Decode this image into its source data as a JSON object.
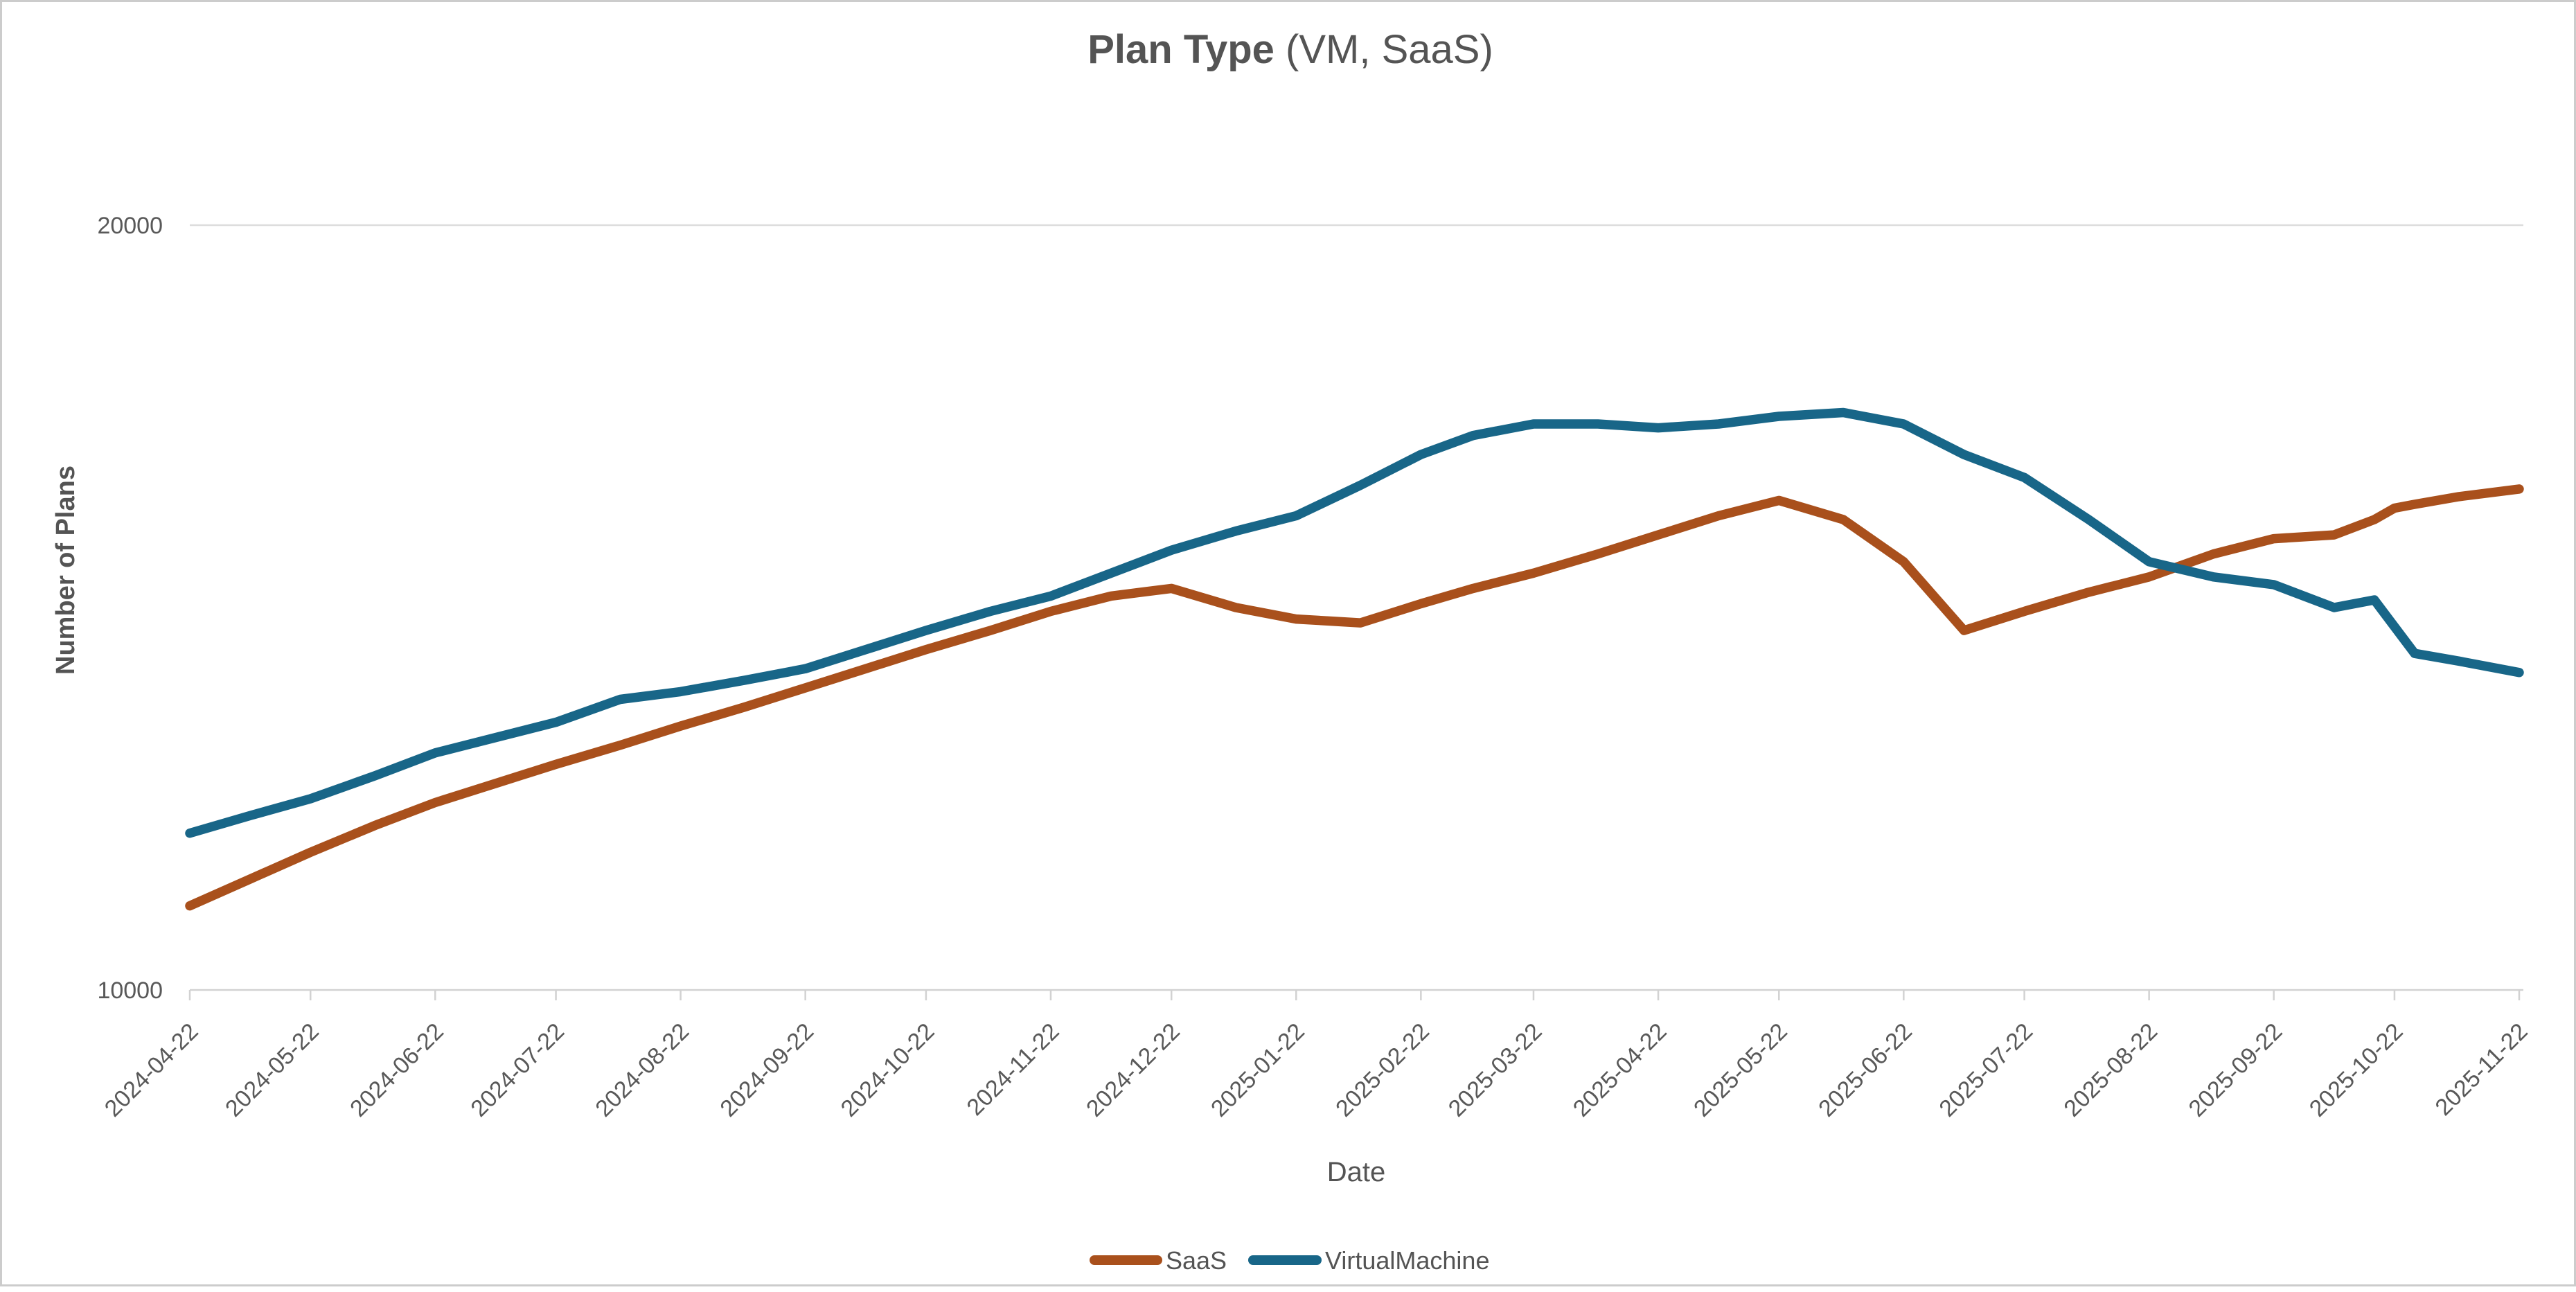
{
  "title": {
    "main": "Plan Type",
    "suffix": " (VM, SaaS)"
  },
  "axes": {
    "y_label": "Number of Plans",
    "x_label": "Date",
    "y_ticks": [
      "20000",
      "10000"
    ]
  },
  "legend": {
    "items": [
      {
        "label": "SaaS",
        "color": "#A9501C"
      },
      {
        "label": "VirtualMachine",
        "color": "#186688"
      }
    ]
  },
  "colors": {
    "saas": "#A9501C",
    "virtual_machine": "#186688",
    "gridline": "#DDDDDD",
    "axis": "#D2D2D2",
    "text": "#545454"
  },
  "chart_data": {
    "type": "line",
    "title": "Plan Type (VM, SaaS)",
    "xlabel": "Date",
    "ylabel": "Number of Plans",
    "ylim": [
      10000,
      21100
    ],
    "y_axis_ticks": [
      10000,
      20000
    ],
    "grid": "horizontal gridline at 20000 only",
    "legend_position": "bottom-center",
    "x": [
      "2024-04-22",
      "2024-05-07",
      "2024-05-22",
      "2024-06-07",
      "2024-06-22",
      "2024-07-07",
      "2024-07-22",
      "2024-08-07",
      "2024-08-22",
      "2024-09-07",
      "2024-09-22",
      "2024-10-07",
      "2024-10-22",
      "2024-11-07",
      "2024-11-22",
      "2024-12-07",
      "2024-12-22",
      "2025-01-07",
      "2025-01-22",
      "2025-02-07",
      "2025-02-22",
      "2025-03-07",
      "2025-03-22",
      "2025-04-07",
      "2025-04-22",
      "2025-05-07",
      "2025-05-22",
      "2025-06-07",
      "2025-06-22",
      "2025-07-07",
      "2025-07-22",
      "2025-08-07",
      "2025-08-22",
      "2025-09-07",
      "2025-09-22",
      "2025-10-07",
      "2025-10-17",
      "2025-10-22",
      "2025-10-27",
      "2025-11-07",
      "2025-11-22"
    ],
    "x_tick_labels": [
      "2024-04-22",
      "2024-05-22",
      "2024-06-22",
      "2024-07-22",
      "2024-08-22",
      "2024-09-22",
      "2024-10-22",
      "2024-11-22",
      "2024-12-22",
      "2025-01-22",
      "2025-02-22",
      "2025-03-22",
      "2025-04-22",
      "2025-05-22",
      "2025-06-22",
      "2025-07-22",
      "2025-08-22",
      "2025-09-22",
      "2025-10-22",
      "2025-11-22"
    ],
    "series": [
      {
        "name": "SaaS",
        "color": "#A9501C",
        "values": [
          11100,
          11450,
          11800,
          12150,
          12450,
          12700,
          12950,
          13200,
          13450,
          13700,
          13950,
          14200,
          14450,
          14700,
          14950,
          15150,
          15250,
          15000,
          14850,
          14800,
          15050,
          15250,
          15450,
          15700,
          15950,
          16200,
          16400,
          16150,
          15600,
          14700,
          14950,
          15200,
          15400,
          15700,
          15900,
          15950,
          16150,
          16300,
          16350,
          16450,
          16550
        ]
      },
      {
        "name": "VirtualMachine",
        "color": "#186688",
        "values": [
          12050,
          12280,
          12500,
          12800,
          13100,
          13300,
          13500,
          13800,
          13900,
          14050,
          14200,
          14450,
          14700,
          14950,
          15150,
          15450,
          15750,
          16000,
          16200,
          16600,
          17000,
          17250,
          17400,
          17400,
          17350,
          17400,
          17500,
          17550,
          17400,
          17000,
          16700,
          16150,
          15600,
          15400,
          15300,
          15000,
          15100,
          14750,
          14400,
          14300,
          14150
        ]
      }
    ]
  }
}
